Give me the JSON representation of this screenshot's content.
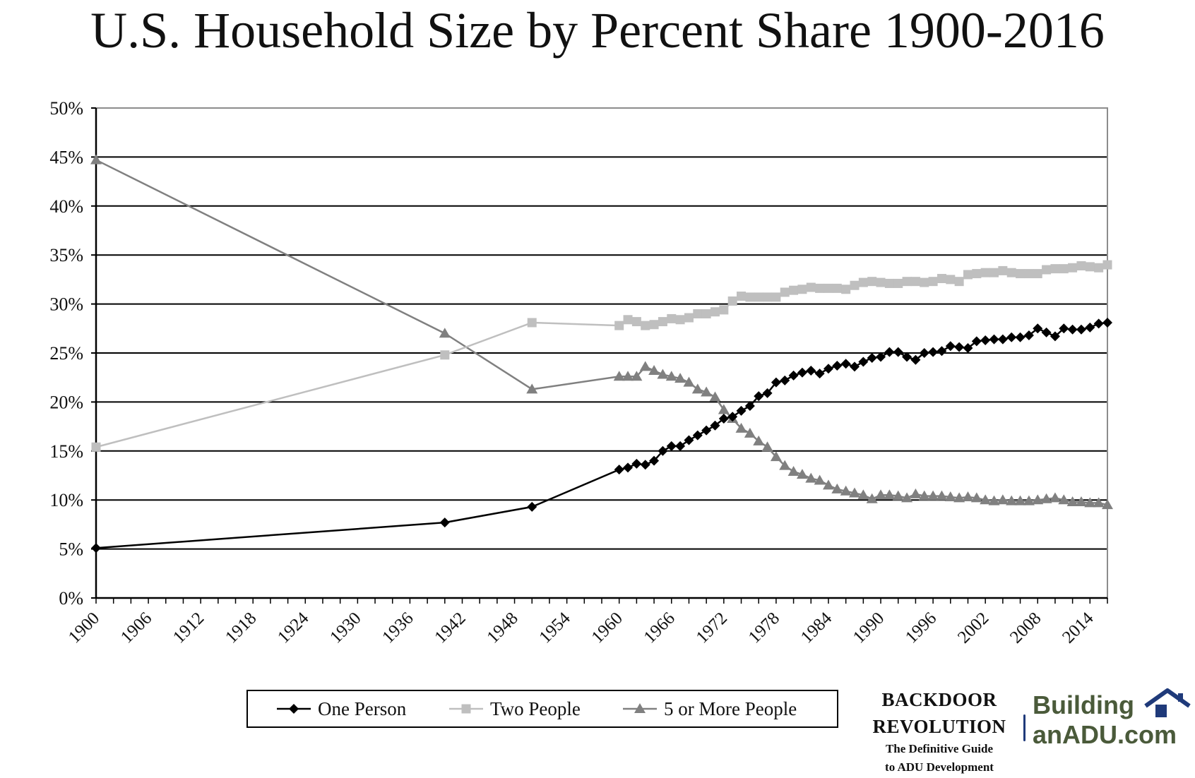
{
  "title": "U.S. Household Size by Percent Share 1900-2016",
  "brand": {
    "line1": "BACKDOOR",
    "line2": "REVOLUTION",
    "tag1": "The Definitive Guide",
    "tag2": "to ADU Development"
  },
  "logo": {
    "line1": "Building",
    "line2": "anADU.com",
    "icon": "house-icon",
    "color": "#4a5a3a",
    "icon_color": "#1f3a7a"
  },
  "chart_data": {
    "type": "line",
    "title": "U.S. Household Size by Percent Share 1900-2016",
    "xlabel": "",
    "ylabel": "",
    "xlim": [
      1900,
      2016
    ],
    "ylim": [
      0,
      50
    ],
    "y_ticks": [
      "0%",
      "5%",
      "10%",
      "15%",
      "20%",
      "25%",
      "30%",
      "35%",
      "40%",
      "45%",
      "50%"
    ],
    "x_ticks": [
      1900,
      1906,
      1912,
      1918,
      1924,
      1930,
      1936,
      1942,
      1948,
      1954,
      1960,
      1966,
      1972,
      1978,
      1984,
      1990,
      1996,
      2002,
      2008,
      2014
    ],
    "grid": "horizontal",
    "legend_position": "bottom",
    "series": [
      {
        "name": "One Person",
        "marker": "diamond",
        "color": "#000000",
        "x": [
          1900,
          1940,
          1950,
          1960,
          1961,
          1962,
          1963,
          1964,
          1965,
          1966,
          1967,
          1968,
          1969,
          1970,
          1971,
          1972,
          1973,
          1974,
          1975,
          1976,
          1977,
          1978,
          1979,
          1980,
          1981,
          1982,
          1983,
          1984,
          1985,
          1986,
          1987,
          1988,
          1989,
          1990,
          1991,
          1992,
          1993,
          1994,
          1995,
          1996,
          1997,
          1998,
          1999,
          2000,
          2001,
          2002,
          2003,
          2004,
          2005,
          2006,
          2007,
          2008,
          2009,
          2010,
          2011,
          2012,
          2013,
          2014,
          2015,
          2016
        ],
        "y": [
          5.1,
          7.7,
          9.3,
          13.1,
          13.3,
          13.7,
          13.6,
          14.0,
          15.0,
          15.5,
          15.5,
          16.1,
          16.6,
          17.1,
          17.6,
          18.3,
          18.5,
          19.1,
          19.6,
          20.6,
          20.9,
          22.0,
          22.2,
          22.7,
          23.0,
          23.2,
          22.9,
          23.4,
          23.7,
          23.9,
          23.6,
          24.1,
          24.5,
          24.6,
          25.1,
          25.1,
          24.6,
          24.3,
          25.0,
          25.1,
          25.2,
          25.7,
          25.6,
          25.5,
          26.2,
          26.3,
          26.4,
          26.4,
          26.6,
          26.6,
          26.8,
          27.5,
          27.1,
          26.7,
          27.5,
          27.4,
          27.4,
          27.6,
          28.0,
          28.1
        ]
      },
      {
        "name": "Two People",
        "marker": "square",
        "color": "#bfbfbf",
        "x": [
          1900,
          1940,
          1950,
          1960,
          1961,
          1962,
          1963,
          1964,
          1965,
          1966,
          1967,
          1968,
          1969,
          1970,
          1971,
          1972,
          1973,
          1974,
          1975,
          1976,
          1977,
          1978,
          1979,
          1980,
          1981,
          1982,
          1983,
          1984,
          1985,
          1986,
          1987,
          1988,
          1989,
          1990,
          1991,
          1992,
          1993,
          1994,
          1995,
          1996,
          1997,
          1998,
          1999,
          2000,
          2001,
          2002,
          2003,
          2004,
          2005,
          2006,
          2007,
          2008,
          2009,
          2010,
          2011,
          2012,
          2013,
          2014,
          2015,
          2016
        ],
        "y": [
          15.4,
          24.8,
          28.1,
          27.8,
          28.4,
          28.2,
          27.8,
          27.9,
          28.2,
          28.5,
          28.4,
          28.6,
          29.0,
          29.0,
          29.2,
          29.4,
          30.3,
          30.8,
          30.7,
          30.7,
          30.7,
          30.7,
          31.2,
          31.4,
          31.5,
          31.7,
          31.6,
          31.6,
          31.6,
          31.5,
          31.9,
          32.2,
          32.3,
          32.2,
          32.1,
          32.1,
          32.3,
          32.3,
          32.2,
          32.3,
          32.6,
          32.5,
          32.3,
          33.0,
          33.1,
          33.2,
          33.2,
          33.4,
          33.2,
          33.1,
          33.1,
          33.1,
          33.5,
          33.6,
          33.6,
          33.7,
          33.9,
          33.8,
          33.7,
          34.0
        ]
      },
      {
        "name": "5 or More People",
        "marker": "triangle",
        "color": "#808080",
        "x": [
          1900,
          1940,
          1950,
          1960,
          1961,
          1962,
          1963,
          1964,
          1965,
          1966,
          1967,
          1968,
          1969,
          1970,
          1971,
          1972,
          1973,
          1974,
          1975,
          1976,
          1977,
          1978,
          1979,
          1980,
          1981,
          1982,
          1983,
          1984,
          1985,
          1986,
          1987,
          1988,
          1989,
          1990,
          1991,
          1992,
          1993,
          1994,
          1995,
          1996,
          1997,
          1998,
          1999,
          2000,
          2001,
          2002,
          2003,
          2004,
          2005,
          2006,
          2007,
          2008,
          2009,
          2010,
          2011,
          2012,
          2013,
          2014,
          2015,
          2016
        ],
        "y": [
          44.7,
          27.0,
          21.3,
          22.6,
          22.6,
          22.6,
          23.6,
          23.2,
          22.8,
          22.6,
          22.4,
          22.0,
          21.3,
          21.0,
          20.5,
          19.2,
          18.3,
          17.3,
          16.8,
          16.0,
          15.4,
          14.4,
          13.5,
          12.9,
          12.6,
          12.2,
          12.0,
          11.5,
          11.1,
          10.9,
          10.7,
          10.5,
          10.1,
          10.5,
          10.5,
          10.4,
          10.2,
          10.6,
          10.4,
          10.4,
          10.4,
          10.3,
          10.2,
          10.3,
          10.2,
          10.0,
          9.9,
          10.0,
          9.9,
          9.9,
          9.9,
          10.0,
          10.1,
          10.2,
          10.0,
          9.8,
          9.8,
          9.7,
          9.7,
          9.5
        ]
      }
    ]
  }
}
